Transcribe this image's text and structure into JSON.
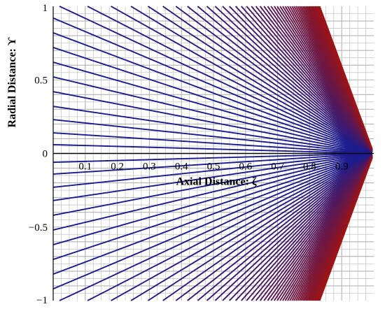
{
  "chart_data": {
    "type": "line",
    "title": "",
    "xlabel": "Axial Distance: ζ",
    "ylabel": "Radial Distance: ϒ",
    "xlim": [
      0,
      1
    ],
    "ylim": [
      -1,
      1
    ],
    "x_ticks": [
      "0.1",
      "0.2",
      "0.3",
      "0.4",
      "0.5",
      "0.6",
      "0.7",
      "0.8",
      "0.9"
    ],
    "x_tick_values": [
      0.1,
      0.2,
      0.3,
      0.4,
      0.5,
      0.6,
      0.7,
      0.8,
      0.9
    ],
    "y_ticks": [
      "1",
      "0.5",
      "0",
      "−0.5",
      "−1"
    ],
    "y_tick_values": [
      1,
      0.5,
      0,
      -0.5,
      -1
    ],
    "grid": true,
    "legend": "none",
    "series_description_levels": [
      0.06,
      0.14,
      0.23,
      0.32,
      0.42,
      0.52,
      0.62,
      0.72,
      0.82,
      0.92,
      1.02,
      1.12,
      1.22,
      1.32,
      1.42,
      1.52,
      1.62,
      1.72,
      1.82,
      1.92,
      2.02,
      2.12,
      2.22,
      2.32,
      2.42,
      2.52,
      2.62,
      2.72,
      2.82,
      2.92,
      3.02,
      3.12,
      3.22,
      3.32,
      3.42,
      3.52,
      3.62,
      3.72,
      3.82,
      3.92,
      4.02,
      4.12,
      4.22,
      4.32,
      4.42,
      4.52,
      4.62,
      4.72,
      4.82,
      4.92,
      5.02,
      5.12,
      5.22,
      5.32,
      5.42,
      5.52,
      5.62,
      5.72,
      5.82,
      5.92
    ],
    "colors": {
      "low": "#1c1c8e",
      "high": "#9e1414",
      "axis": "#000000",
      "grid": "#c8c8c8"
    }
  }
}
